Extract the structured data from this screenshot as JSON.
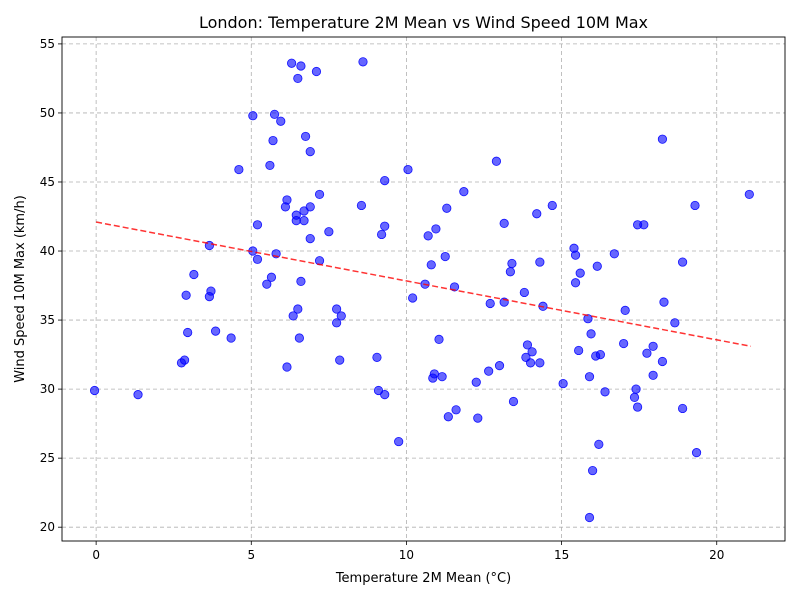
{
  "chart_data": {
    "type": "scatter",
    "title": "London: Temperature 2M Mean vs Wind Speed 10M Max",
    "xlabel": "Temperature 2M Mean (°C)",
    "ylabel": "Wind Speed 10M Max (km/h)",
    "xlim": [
      -1.1,
      22.2
    ],
    "ylim": [
      19,
      55.5
    ],
    "xticks": [
      0,
      5,
      10,
      15,
      20
    ],
    "yticks": [
      20,
      25,
      30,
      35,
      40,
      45,
      50,
      55
    ],
    "grid": true,
    "point_color": "#0000ff",
    "trend_color": "#ff0000",
    "trend_line": {
      "x": [
        0,
        21.1
      ],
      "y": [
        42.1,
        33.1
      ]
    },
    "points": [
      {
        "x": -0.05,
        "y": 29.9
      },
      {
        "x": 1.35,
        "y": 29.6
      },
      {
        "x": 2.75,
        "y": 31.9
      },
      {
        "x": 2.85,
        "y": 32.1
      },
      {
        "x": 2.9,
        "y": 36.8
      },
      {
        "x": 2.95,
        "y": 34.1
      },
      {
        "x": 3.15,
        "y": 38.3
      },
      {
        "x": 3.65,
        "y": 40.4
      },
      {
        "x": 3.65,
        "y": 36.7
      },
      {
        "x": 3.7,
        "y": 37.1
      },
      {
        "x": 3.85,
        "y": 34.2
      },
      {
        "x": 4.35,
        "y": 33.7
      },
      {
        "x": 4.6,
        "y": 45.9
      },
      {
        "x": 5.05,
        "y": 49.8
      },
      {
        "x": 5.05,
        "y": 40.0
      },
      {
        "x": 5.2,
        "y": 41.9
      },
      {
        "x": 5.2,
        "y": 39.4
      },
      {
        "x": 5.5,
        "y": 37.6
      },
      {
        "x": 5.6,
        "y": 46.2
      },
      {
        "x": 5.65,
        "y": 38.1
      },
      {
        "x": 5.7,
        "y": 48.0
      },
      {
        "x": 5.75,
        "y": 49.9
      },
      {
        "x": 5.8,
        "y": 39.8
      },
      {
        "x": 5.95,
        "y": 49.4
      },
      {
        "x": 6.1,
        "y": 43.2
      },
      {
        "x": 6.15,
        "y": 43.7
      },
      {
        "x": 6.15,
        "y": 31.6
      },
      {
        "x": 6.3,
        "y": 53.6
      },
      {
        "x": 6.35,
        "y": 35.3
      },
      {
        "x": 6.45,
        "y": 42.6
      },
      {
        "x": 6.45,
        "y": 42.2
      },
      {
        "x": 6.5,
        "y": 52.5
      },
      {
        "x": 6.5,
        "y": 35.8
      },
      {
        "x": 6.55,
        "y": 33.7
      },
      {
        "x": 6.6,
        "y": 53.4
      },
      {
        "x": 6.6,
        "y": 37.8
      },
      {
        "x": 6.7,
        "y": 42.9
      },
      {
        "x": 6.7,
        "y": 42.2
      },
      {
        "x": 6.75,
        "y": 48.3
      },
      {
        "x": 6.9,
        "y": 47.2
      },
      {
        "x": 6.9,
        "y": 43.2
      },
      {
        "x": 6.9,
        "y": 40.9
      },
      {
        "x": 7.1,
        "y": 53.0
      },
      {
        "x": 7.2,
        "y": 44.1
      },
      {
        "x": 7.2,
        "y": 39.3
      },
      {
        "x": 7.5,
        "y": 41.4
      },
      {
        "x": 7.75,
        "y": 35.8
      },
      {
        "x": 7.75,
        "y": 34.8
      },
      {
        "x": 7.85,
        "y": 32.1
      },
      {
        "x": 7.9,
        "y": 35.3
      },
      {
        "x": 8.55,
        "y": 43.3
      },
      {
        "x": 8.6,
        "y": 53.7
      },
      {
        "x": 9.05,
        "y": 32.3
      },
      {
        "x": 9.1,
        "y": 29.9
      },
      {
        "x": 9.2,
        "y": 41.2
      },
      {
        "x": 9.3,
        "y": 45.1
      },
      {
        "x": 9.3,
        "y": 41.8
      },
      {
        "x": 9.3,
        "y": 29.6
      },
      {
        "x": 9.75,
        "y": 26.2
      },
      {
        "x": 10.05,
        "y": 45.9
      },
      {
        "x": 10.2,
        "y": 36.6
      },
      {
        "x": 10.6,
        "y": 37.6
      },
      {
        "x": 10.7,
        "y": 41.1
      },
      {
        "x": 10.8,
        "y": 39.0
      },
      {
        "x": 10.85,
        "y": 30.8
      },
      {
        "x": 10.9,
        "y": 31.1
      },
      {
        "x": 10.95,
        "y": 41.6
      },
      {
        "x": 11.05,
        "y": 33.6
      },
      {
        "x": 11.15,
        "y": 30.9
      },
      {
        "x": 11.25,
        "y": 39.6
      },
      {
        "x": 11.3,
        "y": 43.1
      },
      {
        "x": 11.35,
        "y": 28.0
      },
      {
        "x": 11.55,
        "y": 37.4
      },
      {
        "x": 11.6,
        "y": 28.5
      },
      {
        "x": 11.85,
        "y": 44.3
      },
      {
        "x": 12.25,
        "y": 30.5
      },
      {
        "x": 12.3,
        "y": 27.9
      },
      {
        "x": 12.65,
        "y": 31.3
      },
      {
        "x": 12.7,
        "y": 36.2
      },
      {
        "x": 12.9,
        "y": 46.5
      },
      {
        "x": 13.0,
        "y": 31.7
      },
      {
        "x": 13.15,
        "y": 42.0
      },
      {
        "x": 13.15,
        "y": 36.3
      },
      {
        "x": 13.35,
        "y": 38.5
      },
      {
        "x": 13.4,
        "y": 39.1
      },
      {
        "x": 13.45,
        "y": 29.1
      },
      {
        "x": 13.8,
        "y": 37.0
      },
      {
        "x": 13.85,
        "y": 32.3
      },
      {
        "x": 13.9,
        "y": 33.2
      },
      {
        "x": 14.0,
        "y": 31.9
      },
      {
        "x": 14.05,
        "y": 32.7
      },
      {
        "x": 14.2,
        "y": 42.7
      },
      {
        "x": 14.3,
        "y": 39.2
      },
      {
        "x": 14.3,
        "y": 31.9
      },
      {
        "x": 14.4,
        "y": 36.0
      },
      {
        "x": 14.7,
        "y": 43.3
      },
      {
        "x": 15.05,
        "y": 30.4
      },
      {
        "x": 15.4,
        "y": 40.2
      },
      {
        "x": 15.45,
        "y": 39.7
      },
      {
        "x": 15.45,
        "y": 37.7
      },
      {
        "x": 15.55,
        "y": 32.8
      },
      {
        "x": 15.6,
        "y": 38.4
      },
      {
        "x": 15.85,
        "y": 35.1
      },
      {
        "x": 15.9,
        "y": 30.9
      },
      {
        "x": 15.9,
        "y": 20.7
      },
      {
        "x": 15.95,
        "y": 34.0
      },
      {
        "x": 16.0,
        "y": 24.1
      },
      {
        "x": 16.15,
        "y": 38.9
      },
      {
        "x": 16.1,
        "y": 32.4
      },
      {
        "x": 16.2,
        "y": 26.0
      },
      {
        "x": 16.25,
        "y": 32.5
      },
      {
        "x": 16.4,
        "y": 29.8
      },
      {
        "x": 16.7,
        "y": 39.8
      },
      {
        "x": 17.0,
        "y": 33.3
      },
      {
        "x": 17.05,
        "y": 35.7
      },
      {
        "x": 17.35,
        "y": 29.4
      },
      {
        "x": 17.4,
        "y": 30.0
      },
      {
        "x": 17.45,
        "y": 28.7
      },
      {
        "x": 17.45,
        "y": 41.9
      },
      {
        "x": 17.65,
        "y": 41.9
      },
      {
        "x": 17.75,
        "y": 32.6
      },
      {
        "x": 17.95,
        "y": 33.1
      },
      {
        "x": 17.95,
        "y": 31.0
      },
      {
        "x": 18.25,
        "y": 48.1
      },
      {
        "x": 18.25,
        "y": 32.0
      },
      {
        "x": 18.3,
        "y": 36.3
      },
      {
        "x": 18.65,
        "y": 34.8
      },
      {
        "x": 18.9,
        "y": 39.2
      },
      {
        "x": 18.9,
        "y": 28.6
      },
      {
        "x": 19.3,
        "y": 43.3
      },
      {
        "x": 19.35,
        "y": 25.4
      },
      {
        "x": 21.05,
        "y": 44.1
      }
    ]
  }
}
